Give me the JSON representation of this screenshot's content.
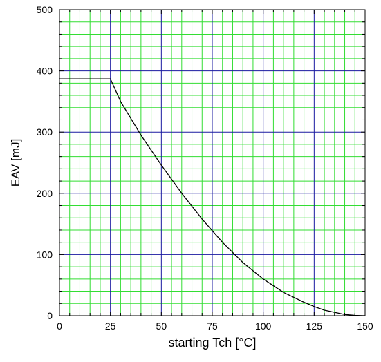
{
  "chart_data": {
    "type": "line",
    "title": "",
    "xlabel": "starting Tch [°C]",
    "ylabel": "EAV [mJ]",
    "xlim": [
      0,
      150
    ],
    "ylim": [
      0,
      500
    ],
    "x_ticks": [
      0,
      25,
      50,
      75,
      100,
      125,
      150
    ],
    "y_ticks": [
      0,
      100,
      200,
      300,
      400,
      500
    ],
    "x_tick_labels": [
      "0",
      "25",
      "50",
      "75",
      "100",
      "125",
      "150"
    ],
    "y_tick_labels": [
      "0",
      "100",
      "200",
      "300",
      "400",
      "500"
    ],
    "grid": true,
    "minor_step_x": 5,
    "minor_step_y": 20,
    "colors": {
      "major_grid": "#1a1aa0",
      "minor_grid": "#33dd33",
      "series_line": "#000000"
    },
    "series": [
      {
        "x": [
          0,
          25,
          30,
          40,
          50,
          60,
          70,
          80,
          90,
          100,
          110,
          120,
          125,
          130,
          140,
          145,
          150
        ],
        "y": [
          387,
          387,
          350,
          295,
          246,
          200,
          158,
          120,
          87,
          60,
          38,
          22,
          15,
          9,
          2,
          0.5,
          0
        ]
      }
    ]
  }
}
